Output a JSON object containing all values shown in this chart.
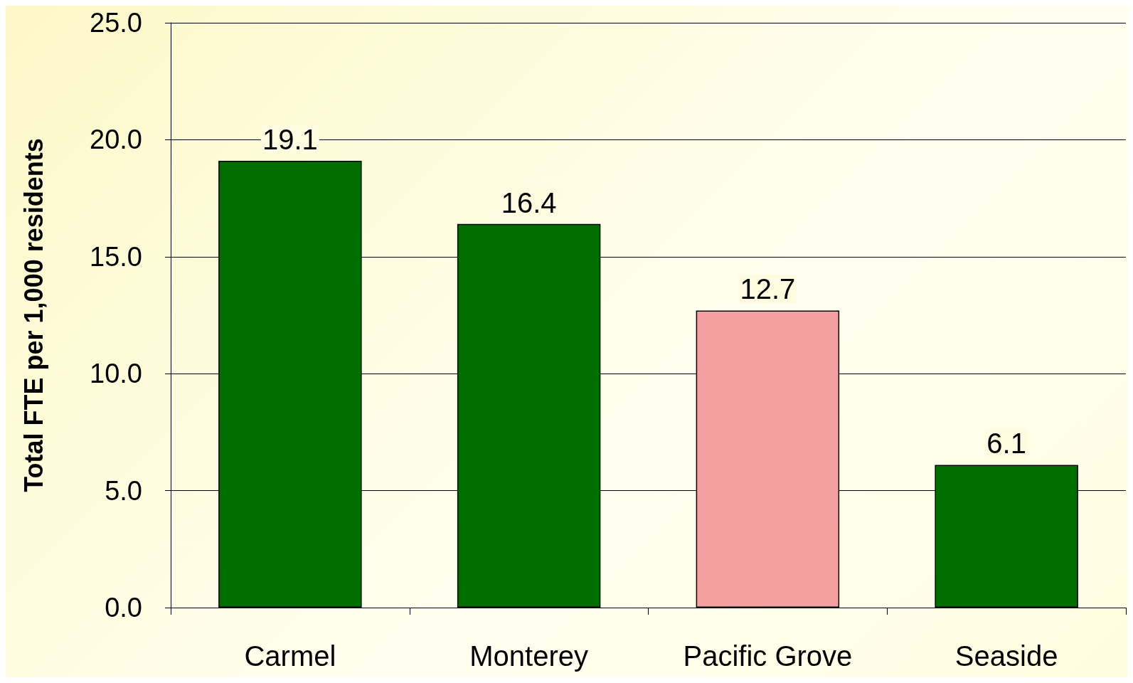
{
  "chart_data": {
    "type": "bar",
    "ylabel": "Total FTE per 1,000 residents",
    "categories": [
      "Carmel",
      "Monterey",
      "Pacific Grove",
      "Seaside"
    ],
    "values": [
      19.1,
      16.4,
      12.7,
      6.1
    ],
    "colors": [
      "#006f00",
      "#006f00",
      "#f4a0a0",
      "#006f00"
    ],
    "ylim": [
      0,
      25
    ],
    "yticks": [
      {
        "value": 0,
        "label": "0.0"
      },
      {
        "value": 5,
        "label": "5.0"
      },
      {
        "value": 10,
        "label": "10.0"
      },
      {
        "value": 15,
        "label": "15.0"
      },
      {
        "value": 20,
        "label": "20.0"
      },
      {
        "value": 25,
        "label": "25.0"
      }
    ],
    "grid": "y",
    "data_labels": true
  }
}
